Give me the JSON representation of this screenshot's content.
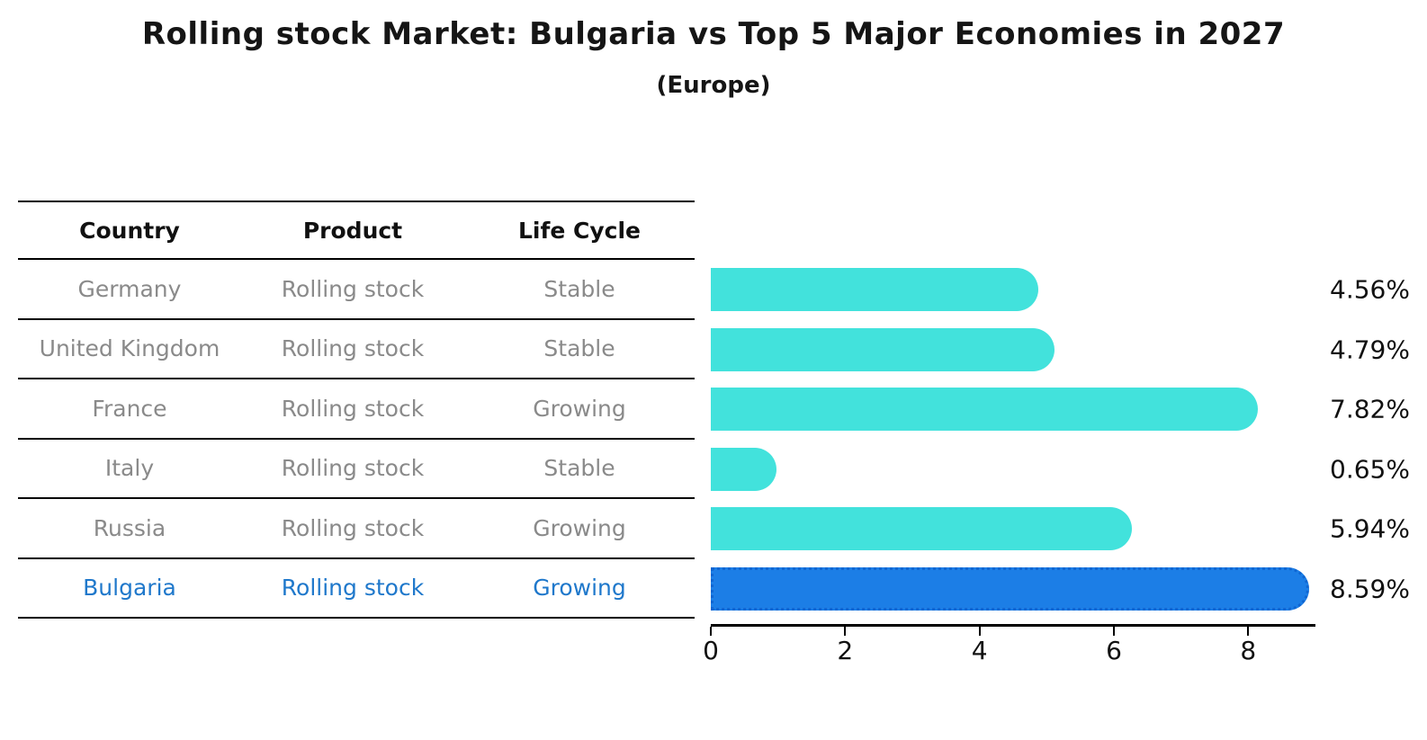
{
  "title": "Rolling stock Market: Bulgaria vs Top 5 Major Economies in 2027",
  "subtitle": "(Europe)",
  "table": {
    "headers": [
      "Country",
      "Product",
      "Life Cycle"
    ],
    "rows": [
      {
        "country": "Germany",
        "product": "Rolling stock",
        "life_cycle": "Stable",
        "highlighted": false
      },
      {
        "country": "United Kingdom",
        "product": "Rolling stock",
        "life_cycle": "Stable",
        "highlighted": false
      },
      {
        "country": "France",
        "product": "Rolling stock",
        "life_cycle": "Growing",
        "highlighted": false
      },
      {
        "country": "Italy",
        "product": "Rolling stock",
        "life_cycle": "Stable",
        "highlighted": false
      },
      {
        "country": "Russia",
        "product": "Rolling stock",
        "life_cycle": "Growing",
        "highlighted": true
      },
      {
        "country": "Bulgaria",
        "product": "Rolling stock",
        "life_cycle": "Growing",
        "highlighted": true
      }
    ]
  },
  "chart_data": {
    "type": "bar",
    "orientation": "horizontal",
    "title": "Rolling stock Market: Bulgaria vs Top 5 Major Economies in 2027 (Europe)",
    "categories": [
      "Germany",
      "United Kingdom",
      "France",
      "Italy",
      "Russia",
      "Bulgaria"
    ],
    "values": [
      4.56,
      4.79,
      7.82,
      0.65,
      5.94,
      8.59
    ],
    "value_labels": [
      "4.56%",
      "4.79%",
      "7.82%",
      "0.65%",
      "5.94%",
      "8.59%"
    ],
    "x_ticks": [
      0,
      2,
      4,
      6,
      8
    ],
    "xlim": [
      0,
      9
    ],
    "grid": false,
    "legend": null,
    "bar_color": "#42e2dc",
    "highlight_index": 5,
    "highlight_color": "#1c7ee6",
    "highlight_border_color": "#0f66d2",
    "highlight_text_color": "#1f78cb",
    "row_text_color": "#8a8a8a"
  }
}
